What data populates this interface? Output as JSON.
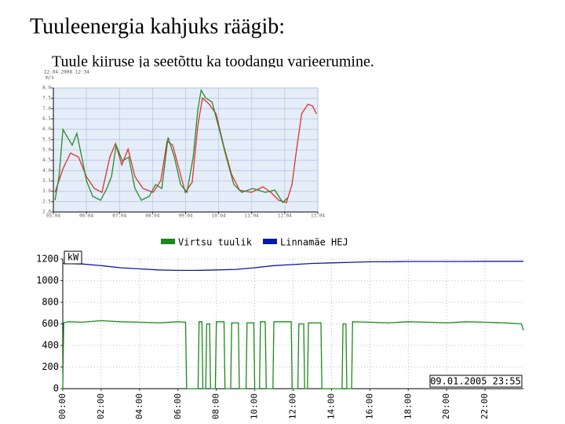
{
  "title": "Tuuleenergia kahjuks räägib:",
  "subtitle": "Tuule kiiruse ja seetõttu ka toodangu varieerumine.",
  "chart_data": [
    {
      "type": "line",
      "title": "12.04.2008 12:34",
      "ylabel": "m/s",
      "grid": true,
      "xlim": [
        5,
        13
      ],
      "xticks": [
        {
          "value": 5,
          "label": "05.04"
        },
        {
          "value": 6,
          "label": "06.04"
        },
        {
          "value": 7,
          "label": "07.04"
        },
        {
          "value": 8,
          "label": "08.04"
        },
        {
          "value": 9,
          "label": "09.04"
        },
        {
          "value": 10,
          "label": "10.04"
        },
        {
          "value": 11,
          "label": "11.04"
        },
        {
          "value": 12,
          "label": "12.04"
        },
        {
          "value": 13,
          "label": "13.04"
        }
      ],
      "ylim": [
        2,
        8
      ],
      "yticks": [
        {
          "value": 2,
          "label": "2.0"
        },
        2.5,
        {
          "value": 3,
          "label": "3.0"
        },
        3.5,
        {
          "value": 4,
          "label": "4.0"
        },
        4.5,
        {
          "value": 5,
          "label": "5.0"
        },
        5.5,
        {
          "value": 6,
          "label": "6.0"
        },
        6.5,
        {
          "value": 7,
          "label": "7.0"
        },
        7.5,
        {
          "value": 8,
          "label": "8.0"
        }
      ],
      "series": [
        {
          "color": "#e03030",
          "x": [
            5.05,
            5.29,
            5.52,
            5.76,
            6.0,
            6.24,
            6.47,
            6.71,
            6.88,
            7.07,
            7.26,
            7.47,
            7.71,
            8.02,
            8.25,
            8.44,
            8.61,
            8.8,
            8.99,
            9.2,
            9.37,
            9.51,
            9.7,
            9.92,
            10.15,
            10.39,
            10.63,
            10.99,
            11.34,
            11.58,
            11.82,
            12.05,
            12.22,
            12.36,
            12.51,
            12.7,
            12.84,
            12.96
          ],
          "values": [
            2.95,
            4.09,
            4.85,
            4.66,
            3.71,
            3.14,
            2.95,
            4.66,
            5.31,
            4.28,
            5.04,
            3.71,
            3.14,
            2.95,
            3.52,
            5.42,
            5.23,
            4.09,
            2.95,
            3.44,
            6.18,
            7.51,
            7.24,
            6.75,
            5.23,
            3.82,
            3.06,
            2.95,
            3.22,
            2.95,
            2.57,
            2.46,
            3.33,
            5.04,
            6.75,
            7.21,
            7.13,
            6.75
          ]
        },
        {
          "color": "#2a8a2a",
          "x": [
            5.05,
            5.17,
            5.29,
            5.43,
            5.57,
            5.71,
            5.86,
            6.0,
            6.19,
            6.43,
            6.62,
            6.76,
            6.9,
            7.09,
            7.28,
            7.47,
            7.66,
            7.9,
            8.09,
            8.28,
            8.47,
            8.66,
            8.85,
            9.04,
            9.23,
            9.37,
            9.47,
            9.61,
            9.8,
            9.99,
            10.23,
            10.46,
            10.7,
            11.03,
            11.41,
            11.7,
            11.94,
            12.08
          ],
          "values": [
            2.57,
            3.71,
            5.99,
            5.61,
            5.23,
            5.8,
            4.66,
            3.52,
            2.76,
            2.57,
            3.14,
            3.71,
            5.23,
            4.47,
            4.66,
            3.14,
            2.57,
            2.76,
            3.33,
            3.14,
            5.61,
            4.66,
            3.33,
            2.95,
            4.66,
            6.94,
            7.89,
            7.51,
            7.32,
            6.18,
            4.66,
            3.33,
            2.95,
            3.14,
            2.95,
            3.06,
            2.46,
            2.68
          ]
        }
      ]
    },
    {
      "type": "line",
      "ylabel": "kW",
      "grid": true,
      "legend": "top",
      "annotation": "09.01.2005 23:55",
      "xlim": [
        0,
        24
      ],
      "xticks": [
        {
          "value": 0,
          "label": "00:00"
        },
        {
          "value": 2,
          "label": "02:00"
        },
        {
          "value": 4,
          "label": "04:00"
        },
        {
          "value": 6,
          "label": "06:00"
        },
        {
          "value": 8,
          "label": "08:00"
        },
        {
          "value": 10,
          "label": "10:00"
        },
        {
          "value": 12,
          "label": "12:00"
        },
        {
          "value": 14,
          "label": "14:00"
        },
        {
          "value": 16,
          "label": "16:00"
        },
        {
          "value": 18,
          "label": "18:00"
        },
        {
          "value": 20,
          "label": "20:00"
        },
        {
          "value": 22,
          "label": "22:00"
        }
      ],
      "ylim": [
        0,
        1200
      ],
      "yticks": [
        0,
        200,
        400,
        600,
        800,
        1000,
        1200
      ],
      "series": [
        {
          "name": "Virtsu tuulik",
          "color": "#1a8a1a",
          "x": [
            0,
            0.05,
            0.3,
            1,
            2,
            3,
            4,
            5,
            6,
            6.4,
            6.45,
            7.05,
            7.1,
            7.25,
            7.3,
            7.45,
            7.5,
            7.65,
            7.7,
            7.95,
            8.0,
            8.4,
            8.45,
            8.75,
            8.8,
            9.15,
            9.2,
            9.55,
            9.6,
            9.95,
            10.0,
            10.25,
            10.3,
            10.55,
            10.6,
            10.95,
            11.0,
            11.9,
            11.95,
            12.25,
            12.3,
            12.55,
            12.6,
            12.75,
            12.8,
            13.45,
            13.5,
            14.55,
            14.6,
            14.75,
            14.8,
            15.05,
            15.1,
            16,
            17,
            18,
            19,
            20,
            21,
            22,
            23,
            23.9,
            24
          ],
          "values": [
            0,
            610,
            620,
            615,
            630,
            620,
            615,
            610,
            620,
            615,
            0,
            0,
            620,
            620,
            0,
            0,
            600,
            600,
            0,
            0,
            620,
            620,
            0,
            0,
            610,
            610,
            0,
            0,
            610,
            610,
            0,
            0,
            620,
            620,
            0,
            0,
            620,
            620,
            0,
            0,
            600,
            600,
            0,
            0,
            610,
            610,
            0,
            0,
            600,
            600,
            0,
            0,
            620,
            615,
            610,
            620,
            615,
            610,
            620,
            615,
            610,
            600,
            540
          ]
        },
        {
          "name": "Linnamäe HEJ",
          "color": "#0a1aa8",
          "x": [
            0,
            1,
            2,
            3,
            4,
            5,
            6,
            7,
            8,
            9,
            10,
            11,
            12,
            13,
            14,
            15,
            16,
            17,
            18,
            19,
            20,
            21,
            22,
            23,
            24
          ],
          "values": [
            1160,
            1155,
            1140,
            1120,
            1110,
            1100,
            1095,
            1095,
            1100,
            1105,
            1120,
            1140,
            1150,
            1160,
            1165,
            1170,
            1175,
            1175,
            1178,
            1178,
            1178,
            1178,
            1180,
            1180,
            1180
          ]
        }
      ]
    }
  ]
}
